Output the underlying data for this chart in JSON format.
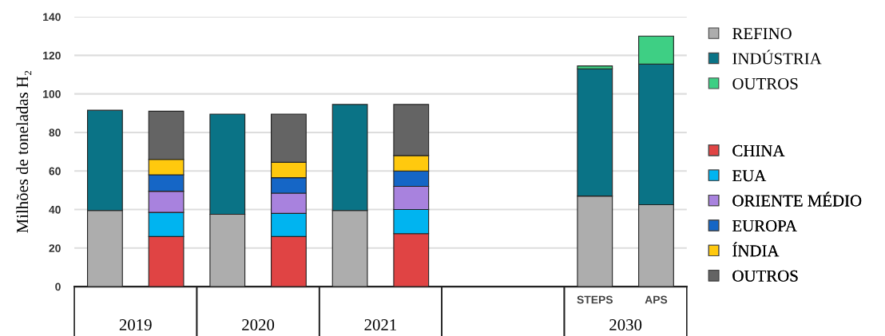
{
  "chart_data": {
    "type": "bar",
    "stacked": true,
    "ylabel": "Milhões de toneladas H₂",
    "categories": [
      null,
      null,
      null,
      null,
      null,
      null,
      null,
      null,
      "STEPS",
      "APS"
    ],
    "series": [
      {
        "name": "REFINO",
        "color": "#adadad",
        "values": [
          39.5,
          null,
          37.5,
          null,
          39.5,
          null,
          null,
          null,
          47,
          42.5
        ]
      },
      {
        "name": "INDÚSTRIA",
        "color": "#0a7386",
        "values": [
          52,
          null,
          52,
          null,
          55,
          null,
          null,
          null,
          66,
          73
        ]
      },
      {
        "name": "OUTROS",
        "color": "#3ecf84",
        "values": [
          null,
          null,
          null,
          null,
          null,
          null,
          null,
          null,
          1.5,
          14.5
        ]
      },
      {
        "name": "CHINA",
        "color": "#e04444",
        "values": [
          null,
          26,
          null,
          26,
          null,
          27.5,
          null,
          null,
          null,
          null
        ]
      },
      {
        "name": "EUA",
        "color": "#00b4f0",
        "values": [
          null,
          12.5,
          null,
          12,
          null,
          12.5,
          null,
          null,
          null,
          null
        ]
      },
      {
        "name": "ORIENTE MÉDIO",
        "color": "#a882de",
        "values": [
          null,
          11,
          null,
          10.5,
          null,
          12,
          null,
          null,
          null,
          null
        ]
      },
      {
        "name": "EUROPA",
        "color": "#1566c6",
        "values": [
          null,
          8.5,
          null,
          8,
          null,
          8,
          null,
          null,
          null,
          null
        ]
      },
      {
        "name": "ÍNDIA",
        "color": "#ffc90e",
        "values": [
          null,
          8,
          null,
          8,
          null,
          8,
          null,
          null,
          null,
          null
        ]
      },
      {
        "name": "OUTROS",
        "color": "#646464",
        "values": [
          null,
          25,
          null,
          25,
          null,
          26.5,
          null,
          null,
          null,
          null
        ]
      }
    ],
    "annotations": [
      "2019",
      "2020",
      "2021",
      "2030"
    ],
    "ylim": [
      0,
      140
    ],
    "yticks": [
      0,
      20,
      40,
      60,
      80,
      100,
      120,
      140
    ],
    "grid": "y",
    "legend": "right"
  }
}
